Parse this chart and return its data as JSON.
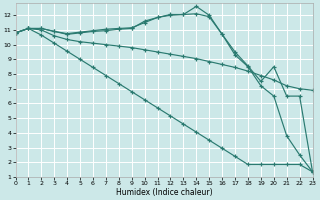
{
  "xlabel": "Humidex (Indice chaleur)",
  "bg_color": "#cce8e8",
  "grid_color": "#ffffff",
  "line_color": "#2a7a70",
  "xlim": [
    0,
    23
  ],
  "ylim": [
    1,
    12.8
  ],
  "yticks": [
    1,
    2,
    3,
    4,
    5,
    6,
    7,
    8,
    9,
    10,
    11,
    12
  ],
  "xticks": [
    0,
    1,
    2,
    3,
    4,
    5,
    6,
    7,
    8,
    9,
    10,
    11,
    12,
    13,
    14,
    15,
    16,
    17,
    18,
    19,
    20,
    21,
    22,
    23
  ],
  "lines": [
    {
      "x": [
        0,
        1,
        2,
        3,
        4,
        5,
        6,
        7,
        8,
        9,
        10,
        11,
        12,
        13,
        14,
        15,
        16,
        17,
        18,
        19,
        20,
        21,
        22,
        23
      ],
      "y": [
        10.8,
        11.1,
        11.1,
        10.9,
        10.75,
        10.85,
        10.95,
        11.05,
        11.1,
        11.15,
        11.5,
        11.85,
        12.0,
        12.05,
        12.6,
        12.0,
        10.7,
        9.3,
        8.5,
        7.2,
        6.5,
        3.8,
        2.5,
        1.35
      ]
    },
    {
      "x": [
        0,
        1,
        2,
        3,
        4,
        5,
        6,
        7,
        8,
        9,
        10,
        11,
        12,
        13,
        14,
        15,
        16,
        17,
        18,
        19,
        20,
        21,
        22,
        23
      ],
      "y": [
        10.8,
        11.1,
        11.1,
        10.9,
        10.7,
        10.8,
        10.9,
        10.95,
        11.05,
        11.1,
        11.6,
        11.85,
        12.05,
        12.05,
        12.1,
        11.9,
        10.7,
        9.5,
        8.55,
        7.5,
        8.5,
        6.5,
        6.5,
        1.35
      ]
    },
    {
      "x": [
        0,
        1,
        2,
        3,
        4,
        5,
        6,
        7,
        8,
        9,
        10,
        11,
        12,
        13,
        14,
        15,
        16,
        17,
        18,
        19,
        20,
        21,
        22,
        23
      ],
      "y": [
        10.8,
        11.1,
        11.0,
        10.6,
        10.35,
        10.2,
        10.1,
        10.0,
        9.9,
        9.8,
        9.65,
        9.5,
        9.35,
        9.2,
        9.05,
        8.85,
        8.65,
        8.45,
        8.2,
        7.9,
        7.6,
        7.2,
        7.0,
        6.9
      ]
    },
    {
      "x": [
        0,
        1,
        2,
        3,
        4,
        5,
        6,
        7,
        8,
        9,
        10,
        11,
        12,
        13,
        14,
        15,
        16,
        17,
        18,
        19,
        20,
        21,
        22,
        23
      ],
      "y": [
        10.8,
        11.1,
        10.65,
        10.1,
        9.55,
        9.0,
        8.45,
        7.9,
        7.35,
        6.8,
        6.25,
        5.7,
        5.15,
        4.6,
        4.05,
        3.5,
        2.95,
        2.4,
        1.85,
        1.85,
        1.85,
        1.85,
        1.85,
        1.35
      ]
    }
  ]
}
